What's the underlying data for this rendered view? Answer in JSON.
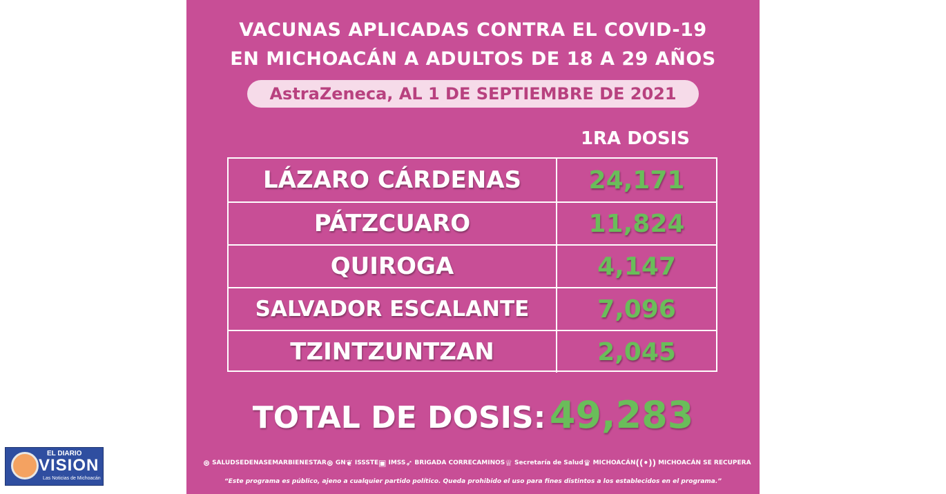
{
  "header": {
    "line1": "VACUNAS APLICADAS CONTRA EL COVID-19",
    "line2": "EN MICHOACÁN A ADULTOS DE 18 A 29 AÑOS",
    "subtitle": "AstraZeneca, AL 1 DE SEPTIEMBRE DE 2021"
  },
  "table": {
    "column_header": "1RA DOSIS",
    "rows": [
      {
        "name": "LÁZARO CÁRDENAS",
        "value": "24,171"
      },
      {
        "name": "PÁTZCUARO",
        "value": "11,824"
      },
      {
        "name": "QUIROGA",
        "value": "4,147"
      },
      {
        "name": "SALVADOR ESCALANTE",
        "value": "7,096"
      },
      {
        "name": "TZINTZUNTZAN",
        "value": "2,045"
      }
    ]
  },
  "total": {
    "label": "TOTAL DE DOSIS:",
    "value": "49,283"
  },
  "logos": [
    {
      "label": "SALUD",
      "icon": "seal-icon"
    },
    {
      "label": "SEDENA",
      "icon": ""
    },
    {
      "label": "SEMAR",
      "icon": ""
    },
    {
      "label": "BIENESTAR",
      "icon": ""
    },
    {
      "label": "GN",
      "icon": "seal-icon"
    },
    {
      "label": "ISSSTE",
      "icon": "emblem-icon"
    },
    {
      "label": "IMSS",
      "icon": "emblem-icon"
    },
    {
      "label": "BRIGADA CORRECAMINOS",
      "icon": "bird-icon"
    },
    {
      "label": "Secretaría de Salud",
      "icon": "emblem-icon"
    },
    {
      "label": "MICHOACÁN",
      "icon": "crown-icon"
    },
    {
      "label": "MICHOACÁN SE RECUPERA",
      "icon": "signal-icon"
    }
  ],
  "disclaimer": "“Este programa es público, ajeno a cualquier partido político. Queda prohibido el uso para fines distintos a los establecidos en el programa.”",
  "brand": {
    "top": "EL DIARIO",
    "name": "VISION",
    "tagline": "Las Noticias de Michoacán"
  },
  "colors": {
    "background": "#c84e96",
    "value_green": "#6abd5a",
    "pill": "#f6dbe9"
  }
}
